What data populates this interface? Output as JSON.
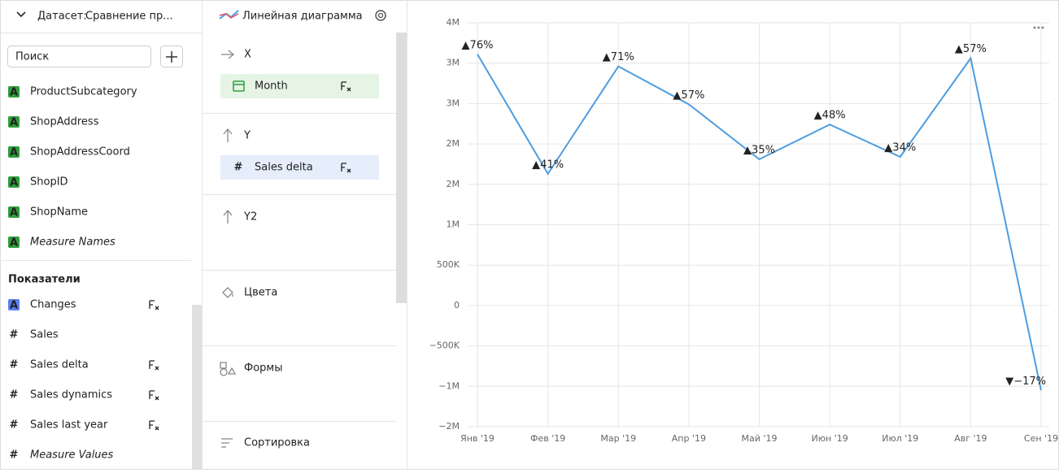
{
  "dataset": {
    "label": "Датасет:",
    "name": "Сравнение пр..."
  },
  "search": {
    "placeholder": "Поиск"
  },
  "dimensions": [
    {
      "icon": "A",
      "name": "ProductSubcategory"
    },
    {
      "icon": "A",
      "name": "ShopAddress"
    },
    {
      "icon": "A",
      "name": "ShopAddressCoord"
    },
    {
      "icon": "A",
      "name": "ShopID"
    },
    {
      "icon": "A",
      "name": "ShopName"
    },
    {
      "icon": "A",
      "name": "Measure Names",
      "italic": true
    }
  ],
  "measures_title": "Показатели",
  "measures": [
    {
      "icon": "A",
      "name": "Changes",
      "formula": true
    },
    {
      "icon": "#",
      "name": "Sales"
    },
    {
      "icon": "#",
      "name": "Sales delta",
      "formula": true
    },
    {
      "icon": "#",
      "name": "Sales dynamics",
      "formula": true
    },
    {
      "icon": "#",
      "name": "Sales last year",
      "formula": true
    },
    {
      "icon": "#",
      "name": "Measure Values",
      "italic": true
    }
  ],
  "visualization": {
    "type": "Линейная диаграмма",
    "sections": [
      {
        "title": "X",
        "items": [
          {
            "name": "Month",
            "kind": "date",
            "formula": true
          }
        ]
      },
      {
        "title": "Y",
        "items": [
          {
            "icon": "#",
            "name": "Sales delta",
            "kind": "measure",
            "formula": true
          }
        ]
      },
      {
        "title": "Y2",
        "items": []
      },
      {
        "title": "Цвета",
        "items": []
      },
      {
        "title": "Формы",
        "items": []
      },
      {
        "title": "Сортировка",
        "items": []
      }
    ]
  },
  "chart_data": {
    "type": "line",
    "categories": [
      "Янв '19",
      "Фев '19",
      "Мар '19",
      "Апр '19",
      "Май '19",
      "Июн '19",
      "Июл '19",
      "Авг '19",
      "Сен '19"
    ],
    "series": [
      {
        "name": "Sales delta",
        "color": "#4d9de0",
        "values": [
          3110000,
          1630000,
          2960000,
          2490000,
          1810000,
          2240000,
          1840000,
          3060000,
          -1050000
        ],
        "annotations": [
          "▲76%",
          "▲41%",
          "▲71%",
          "▲57%",
          "▲35%",
          "▲48%",
          "▲34%",
          "▲57%",
          "▼−17%"
        ]
      }
    ],
    "ylim": [
      -1500000,
      3500000
    ],
    "yticks": [
      {
        "value": -1500000,
        "label": "−2M"
      },
      {
        "value": -1000000,
        "label": "−1M"
      },
      {
        "value": -500000,
        "label": "−500K"
      },
      {
        "value": 0,
        "label": "0"
      },
      {
        "value": 500000,
        "label": "500K"
      },
      {
        "value": 1000000,
        "label": "1M"
      },
      {
        "value": 1500000,
        "label": "2M"
      },
      {
        "value": 2000000,
        "label": "2M"
      },
      {
        "value": 2500000,
        "label": "3M"
      },
      {
        "value": 3000000,
        "label": "3M"
      },
      {
        "value": 3500000,
        "label": "4M"
      }
    ],
    "grid": true
  }
}
